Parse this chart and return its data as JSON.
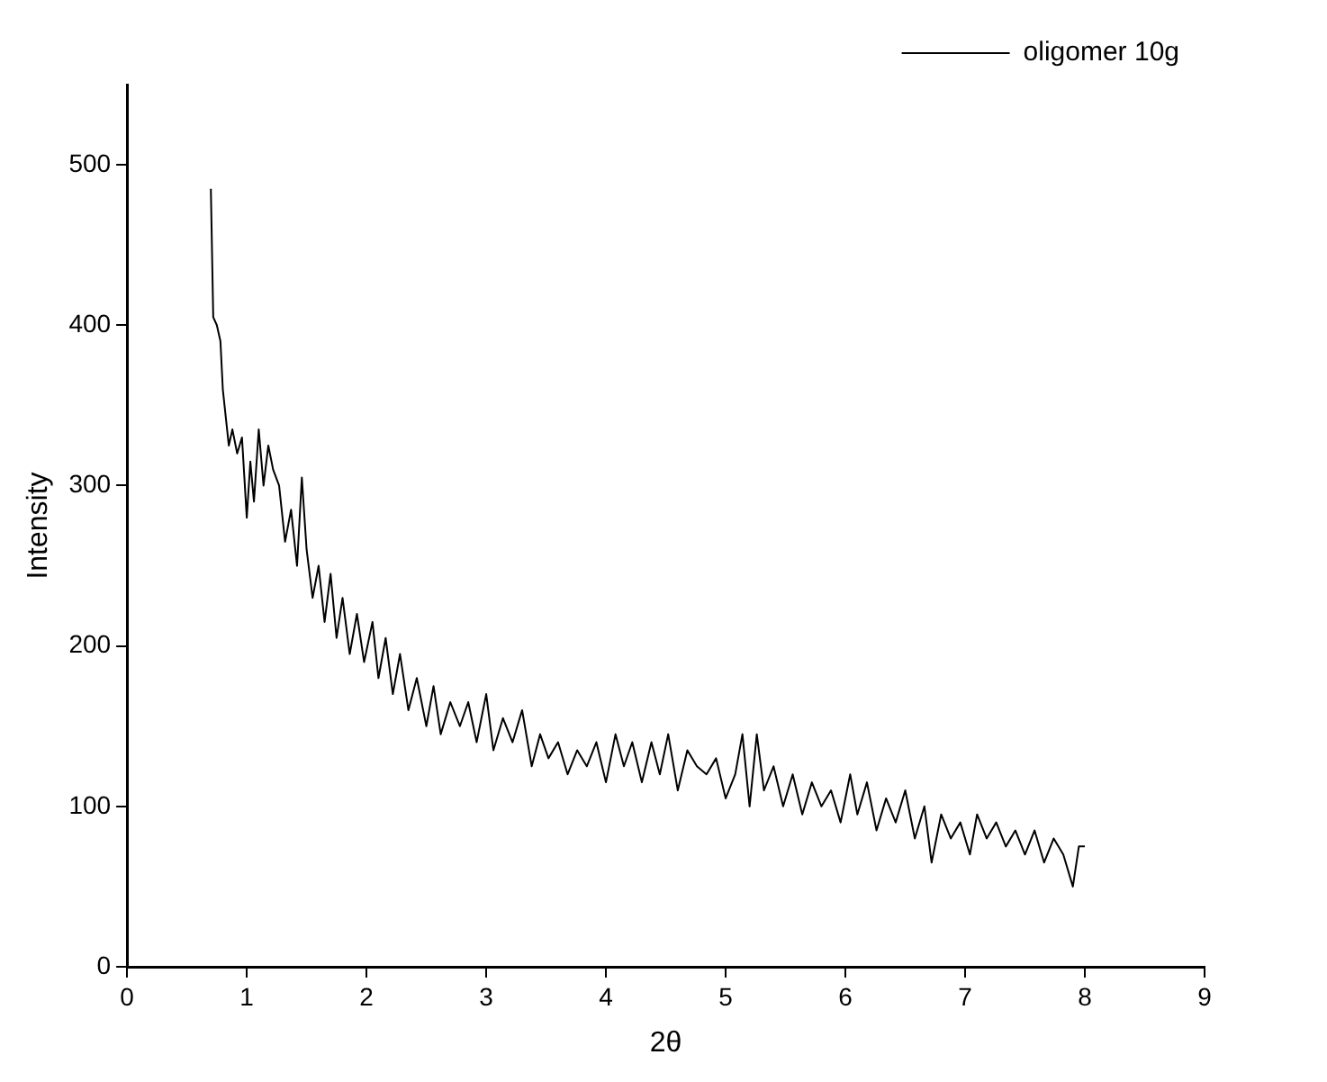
{
  "chart_data": {
    "type": "line",
    "xlabel": "2θ",
    "ylabel": "Intensity",
    "xlim": [
      0,
      9
    ],
    "xticks": [
      0,
      1,
      2,
      3,
      4,
      5,
      6,
      7,
      8,
      9
    ],
    "ylim": [
      0,
      550
    ],
    "yticks": [
      0,
      100,
      200,
      300,
      400,
      500
    ],
    "grid": false,
    "legend": "top right",
    "marker": "none",
    "line_style": "solid",
    "series": [
      {
        "name": "oligomer 10g",
        "color": "#000000",
        "x": [
          0.7,
          0.72,
          0.75,
          0.78,
          0.8,
          0.85,
          0.88,
          0.92,
          0.96,
          1.0,
          1.03,
          1.06,
          1.1,
          1.14,
          1.18,
          1.22,
          1.27,
          1.32,
          1.37,
          1.42,
          1.46,
          1.5,
          1.55,
          1.6,
          1.65,
          1.7,
          1.75,
          1.8,
          1.86,
          1.92,
          1.98,
          2.05,
          2.1,
          2.16,
          2.22,
          2.28,
          2.35,
          2.42,
          2.5,
          2.56,
          2.62,
          2.7,
          2.78,
          2.85,
          2.92,
          3.0,
          3.06,
          3.14,
          3.22,
          3.3,
          3.38,
          3.45,
          3.52,
          3.6,
          3.68,
          3.76,
          3.84,
          3.92,
          4.0,
          4.08,
          4.15,
          4.22,
          4.3,
          4.38,
          4.45,
          4.52,
          4.6,
          4.68,
          4.76,
          4.84,
          4.92,
          5.0,
          5.08,
          5.14,
          5.2,
          5.26,
          5.32,
          5.4,
          5.48,
          5.56,
          5.64,
          5.72,
          5.8,
          5.88,
          5.96,
          6.04,
          6.1,
          6.18,
          6.26,
          6.34,
          6.42,
          6.5,
          6.58,
          6.66,
          6.72,
          6.8,
          6.88,
          6.96,
          7.04,
          7.1,
          7.18,
          7.26,
          7.34,
          7.42,
          7.5,
          7.58,
          7.66,
          7.74,
          7.82,
          7.9,
          7.95,
          8.0
        ],
        "values": [
          485,
          405,
          400,
          390,
          360,
          325,
          335,
          320,
          330,
          280,
          315,
          290,
          335,
          300,
          325,
          310,
          300,
          265,
          285,
          250,
          305,
          260,
          230,
          250,
          215,
          245,
          205,
          230,
          195,
          220,
          190,
          215,
          180,
          205,
          170,
          195,
          160,
          180,
          150,
          175,
          145,
          165,
          150,
          165,
          140,
          170,
          135,
          155,
          140,
          160,
          125,
          145,
          130,
          140,
          120,
          135,
          125,
          140,
          115,
          145,
          125,
          140,
          115,
          140,
          120,
          145,
          110,
          135,
          125,
          120,
          130,
          105,
          120,
          145,
          100,
          145,
          110,
          125,
          100,
          120,
          95,
          115,
          100,
          110,
          90,
          120,
          95,
          115,
          85,
          105,
          90,
          110,
          80,
          100,
          65,
          95,
          80,
          90,
          70,
          95,
          80,
          90,
          75,
          85,
          70,
          85,
          65,
          80,
          70,
          50,
          75,
          75
        ]
      }
    ]
  }
}
